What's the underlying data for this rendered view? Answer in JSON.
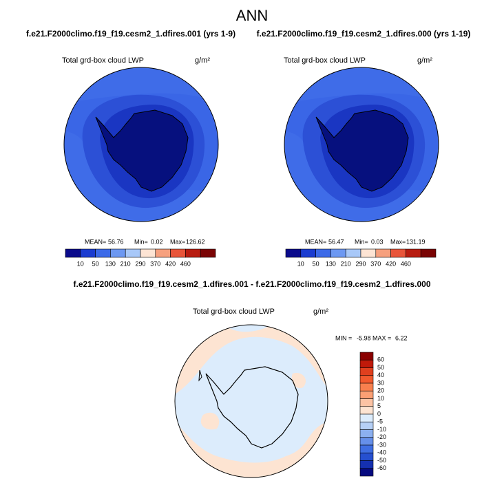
{
  "title": "ANN",
  "panels": [
    {
      "case": "f.e21.F2000climo.f19_f19.cesm2_1.dfires.001 (yrs 1-9)",
      "variable": "Total grd-box cloud LWP",
      "units": "g/m²",
      "mean_label": "MEAN=",
      "mean": 56.76,
      "min_label": "Min=",
      "min": 0.02,
      "max_label": "Max=",
      "max": 126.62,
      "colorbar": {
        "labels": [
          10,
          50,
          130,
          210,
          290,
          370,
          420,
          460
        ],
        "colors": [
          "#0a0a8c",
          "#1b3cd0",
          "#3c6ae8",
          "#6c98f2",
          "#a8c8f8",
          "#fde4d4",
          "#f6a07e",
          "#e8553a",
          "#b81c10",
          "#7a0404"
        ]
      }
    },
    {
      "case": "f.e21.F2000climo.f19_f19.cesm2_1.dfires.000 (yrs 1-19)",
      "variable": "Total grd-box cloud LWP",
      "units": "g/m²",
      "mean_label": "MEAN=",
      "mean": 56.47,
      "min_label": "Min=",
      "min": 0.03,
      "max_label": "Max=",
      "max": 131.19,
      "colorbar": {
        "labels": [
          10,
          50,
          130,
          210,
          290,
          370,
          420,
          460
        ],
        "colors": [
          "#0a0a8c",
          "#1b3cd0",
          "#3c6ae8",
          "#6c98f2",
          "#a8c8f8",
          "#fde4d4",
          "#f6a07e",
          "#e8553a",
          "#b81c10",
          "#7a0404"
        ]
      }
    }
  ],
  "difference": {
    "title": "f.e21.F2000climo.f19_f19.cesm2_1.dfires.001 - f.e21.F2000climo.f19_f19.cesm2_1.dfires.000",
    "variable": "Total grd-box cloud LWP",
    "units": "g/m²",
    "min_label": "MIN =",
    "min": -5.98,
    "max_label": "MAX =",
    "max": 6.22,
    "colorbar": {
      "labels": [
        60,
        50,
        40,
        30,
        20,
        10,
        5,
        0,
        -5,
        -10,
        -20,
        -30,
        -40,
        -50,
        -60
      ],
      "colors": [
        "#8a0000",
        "#c01a0a",
        "#e0401e",
        "#f25a2e",
        "#f8804e",
        "#fba074",
        "#fcc3a4",
        "#fde4d2",
        "#dcecfc",
        "#b6d0f6",
        "#8cb0f0",
        "#6690ea",
        "#3f6ee2",
        "#2650d0",
        "#1530b0",
        "#060a80"
      ]
    }
  }
}
